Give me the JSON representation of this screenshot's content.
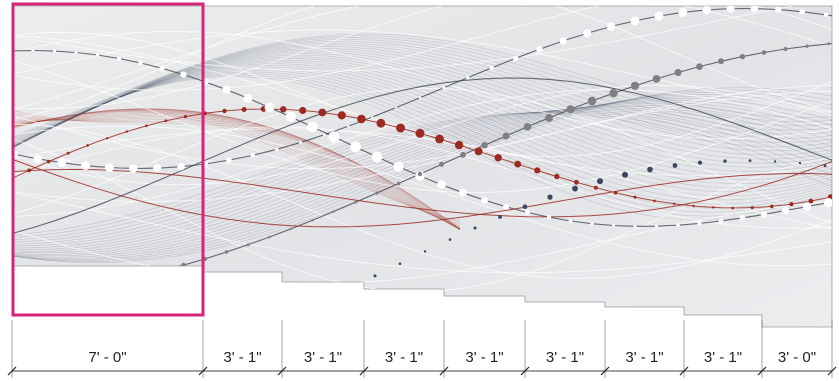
{
  "drawing": {
    "highlight_color": "#d6247a",
    "palette": {
      "wall": "#e7e8ea",
      "navy": "#3b4660",
      "red": "#9b2a22",
      "gray": "#808080",
      "white": "#ffffff"
    },
    "dimensions": [
      {
        "label": "7' - 0\""
      },
      {
        "label": "3' - 1\""
      },
      {
        "label": "3' - 1\""
      },
      {
        "label": "3' - 1\""
      },
      {
        "label": "3' - 1\""
      },
      {
        "label": "3' - 1\""
      },
      {
        "label": "3' - 1\""
      },
      {
        "label": "3' - 1\""
      },
      {
        "label": "3' - 0\""
      }
    ]
  }
}
